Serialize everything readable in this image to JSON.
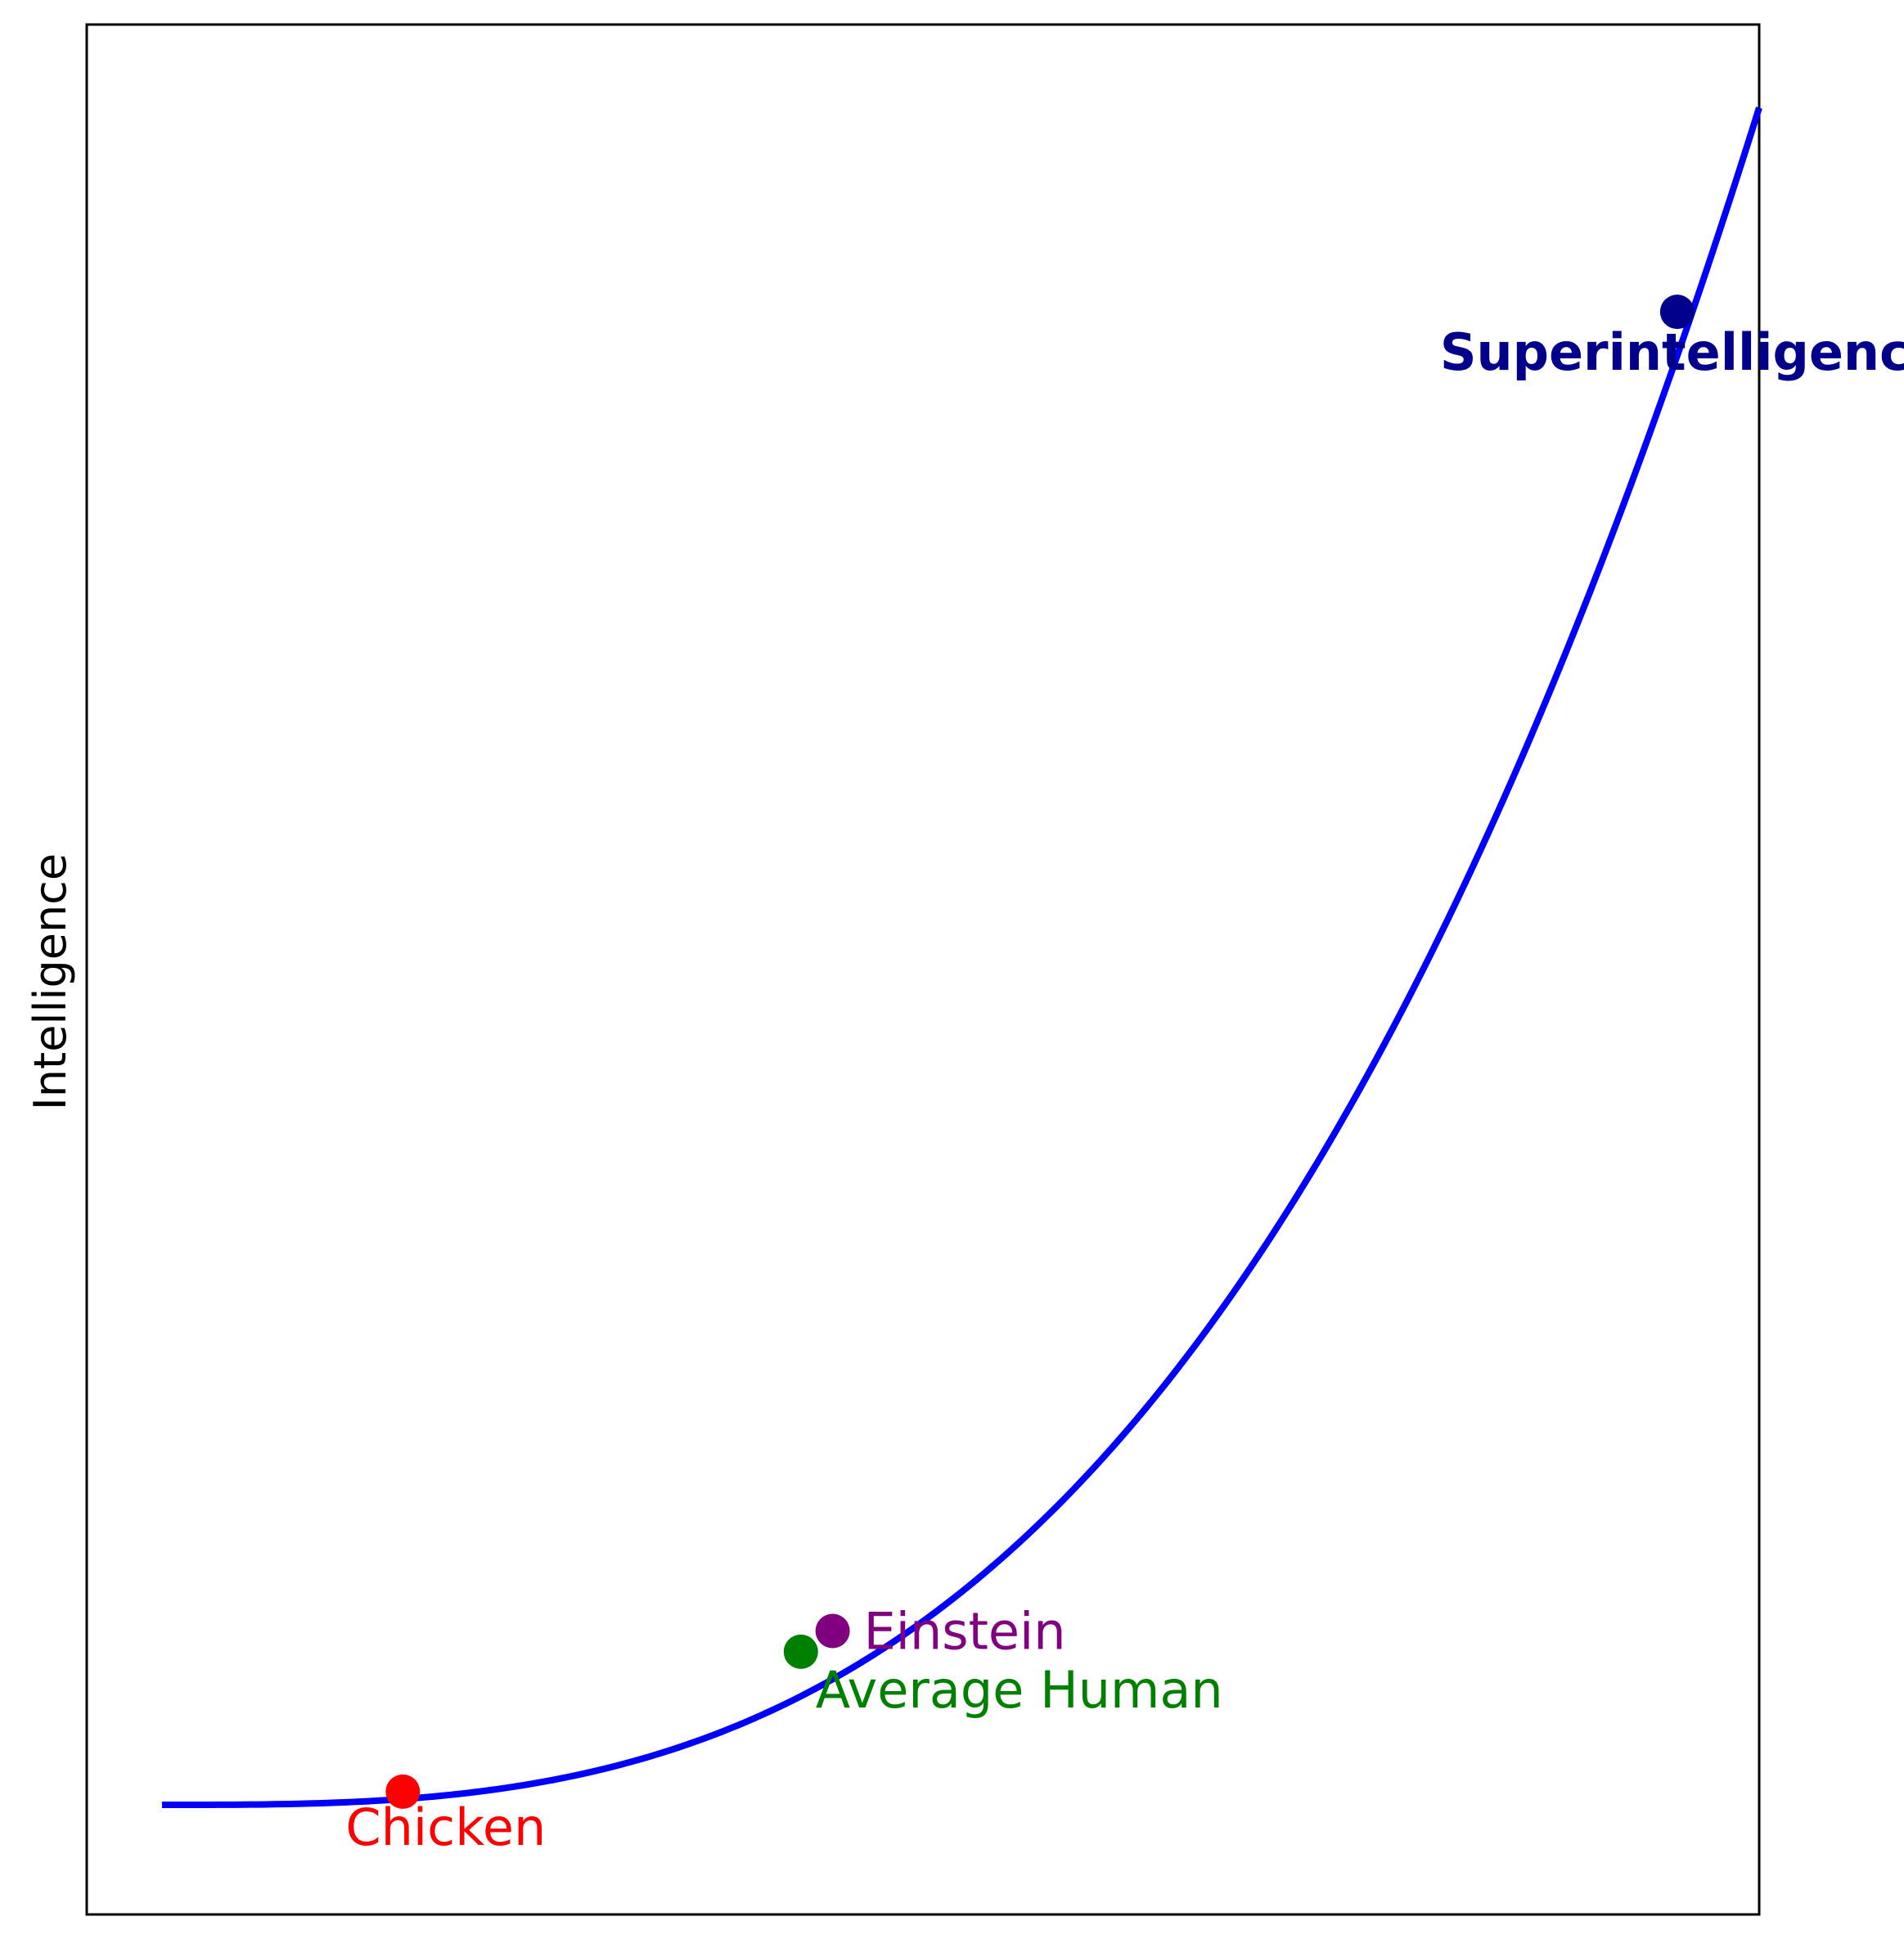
{
  "chart_data": {
    "type": "line",
    "ylabel": "Intelligence",
    "xlim": [
      0,
      10
    ],
    "ylim": [
      0,
      100
    ],
    "grid": false,
    "series": [
      {
        "color": "#0000ff",
        "curve": {
          "x_start": 0.45,
          "x_end": 10.0,
          "exponent": 3,
          "y_min": 5.8,
          "y_max": 95.6
        }
      }
    ],
    "points": [
      {
        "label": "Chicken",
        "x": 1.89,
        "y": 6.5,
        "color": "#ff0000",
        "bold": false
      },
      {
        "label": "Average Human",
        "x": 4.27,
        "y": 13.9,
        "color": "#008000",
        "bold": false
      },
      {
        "label": "Einstein",
        "x": 4.46,
        "y": 15.0,
        "color": "#800080",
        "bold": false
      },
      {
        "label": "Superintelligence",
        "x": 9.51,
        "y": 84.8,
        "color": "#00008b",
        "bold": true
      }
    ]
  }
}
